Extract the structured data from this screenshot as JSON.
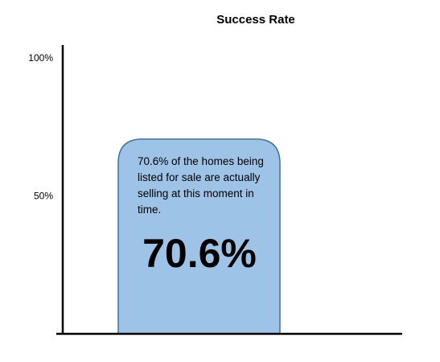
{
  "chart_data": {
    "type": "bar",
    "title": "Success Rate",
    "categories": [
      ""
    ],
    "values": [
      70.6
    ],
    "y_ticks": [
      {
        "value": 100,
        "label": "100%"
      },
      {
        "value": 50,
        "label": "50%"
      }
    ],
    "ylim": [
      0,
      100
    ],
    "xlabel": "",
    "ylabel": "",
    "grid": false,
    "legend": "none",
    "bar_color": "#9dc3e6",
    "bar_edge_color": "#41719c",
    "annotation": "70.6% of the homes being listed for sale are actually selling at this moment in time.",
    "value_label": "70.6%"
  }
}
